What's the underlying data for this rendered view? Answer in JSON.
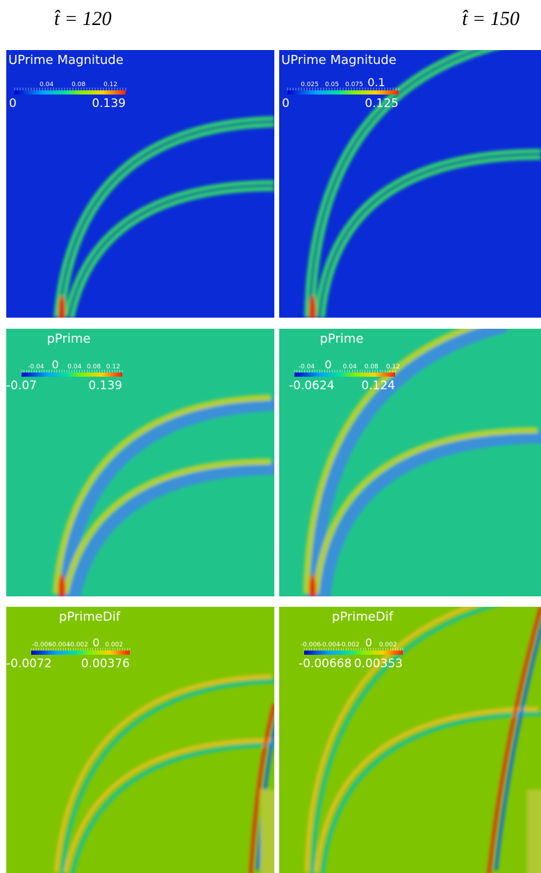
{
  "columns": [
    "t̂ = 120",
    "t̂ = 150"
  ],
  "panels": [
    [
      {
        "title": "UPrime Magnitude",
        "ticks": [
          "0.04",
          "0.08",
          "0.12"
        ],
        "min": "0",
        "max": "0.139"
      },
      {
        "title": "UPrime Magnitude",
        "ticks": [
          "0.025",
          "0.05",
          "0.075",
          "0.1"
        ],
        "min": "0",
        "max": "0.125"
      }
    ],
    [
      {
        "title": "pPrime",
        "ticks": [
          "-0.04",
          "0",
          "0.04",
          "0.08",
          "0.12"
        ],
        "min": "-0.07",
        "max": "0.139"
      },
      {
        "title": "pPrime",
        "ticks": [
          "-0.04",
          "0",
          "0.04",
          "0.08",
          "0.12"
        ],
        "min": "-0.0624",
        "max": "0.124"
      }
    ],
    [
      {
        "title": "pPrimeDif",
        "ticks": [
          "-0.006",
          "-0.004",
          "-0.002",
          "0",
          "0.002"
        ],
        "min": "-0.0072",
        "max": "0.00376"
      },
      {
        "title": "pPrimeDif",
        "ticks": [
          "-0.006",
          "-0.004",
          "-0.002",
          "0",
          "0.002"
        ],
        "min": "-0.00668",
        "max": "0.00353"
      }
    ]
  ]
}
